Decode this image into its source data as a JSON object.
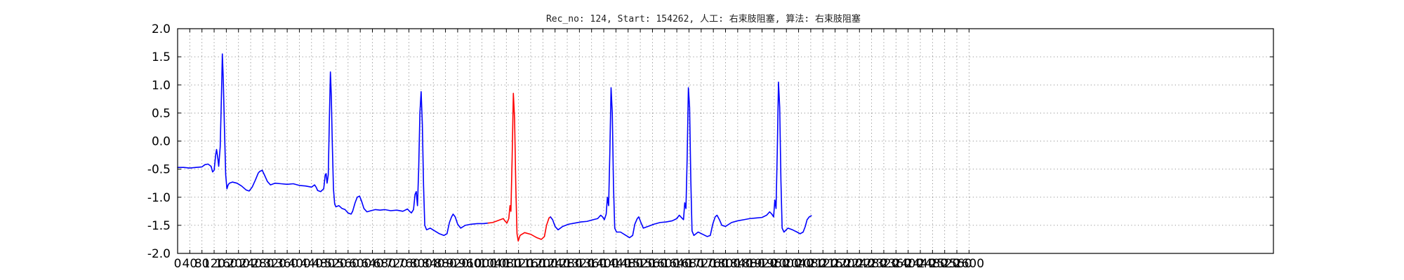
{
  "chart_data": {
    "type": "line",
    "title": "Rec_no: 124, Start: 154262, 人工: 右束肢阻塞, 算法: 右束肢阻塞",
    "xlabel": "",
    "ylabel": "",
    "xlim": [
      0,
      3600
    ],
    "ylim": [
      -2.0,
      2.0
    ],
    "grid": true,
    "x_ticks": [
      0,
      40,
      80,
      120,
      160,
      200,
      240,
      280,
      320,
      360,
      400,
      440,
      480,
      520,
      560,
      600,
      640,
      680,
      720,
      760,
      800,
      840,
      880,
      920,
      960,
      1000,
      1040,
      1080,
      1120,
      1160,
      1200,
      1240,
      1280,
      1320,
      1360,
      1400,
      1440,
      1480,
      1520,
      1560,
      1600,
      1640,
      1680,
      1720,
      1760,
      1800,
      1840,
      1880,
      1920,
      1960,
      2000,
      2040,
      2080,
      2120,
      2160,
      2200,
      2240,
      2280,
      2320,
      2360,
      2400,
      2440,
      2480,
      2520,
      2560,
      2600
    ],
    "y_ticks": [
      "-2.0",
      "-1.5",
      "-1.0",
      "-0.5",
      "0.0",
      "0.5",
      "1.0",
      "1.5",
      "2.0"
    ],
    "series": [
      {
        "color": "#0000ff",
        "points": [
          [
            0,
            -0.47
          ],
          [
            20,
            -0.47
          ],
          [
            40,
            -0.48
          ],
          [
            60,
            -0.47
          ],
          [
            80,
            -0.46
          ],
          [
            90,
            -0.42
          ],
          [
            100,
            -0.41
          ],
          [
            110,
            -0.45
          ],
          [
            115,
            -0.55
          ],
          [
            120,
            -0.52
          ],
          [
            125,
            -0.25
          ],
          [
            128,
            -0.15
          ],
          [
            132,
            -0.3
          ],
          [
            135,
            -0.45
          ],
          [
            140,
            -0.1
          ],
          [
            144,
            0.8
          ],
          [
            147,
            1.55
          ],
          [
            150,
            1.1
          ],
          [
            154,
            0.2
          ],
          [
            158,
            -0.6
          ],
          [
            162,
            -0.85
          ],
          [
            166,
            -0.78
          ],
          [
            170,
            -0.75
          ],
          [
            180,
            -0.73
          ],
          [
            195,
            -0.75
          ],
          [
            210,
            -0.8
          ],
          [
            225,
            -0.87
          ],
          [
            235,
            -0.89
          ],
          [
            245,
            -0.82
          ],
          [
            255,
            -0.7
          ],
          [
            265,
            -0.57
          ],
          [
            270,
            -0.54
          ],
          [
            278,
            -0.52
          ],
          [
            285,
            -0.6
          ],
          [
            295,
            -0.72
          ],
          [
            305,
            -0.78
          ],
          [
            320,
            -0.75
          ],
          [
            340,
            -0.76
          ],
          [
            360,
            -0.77
          ],
          [
            380,
            -0.76
          ],
          [
            400,
            -0.79
          ],
          [
            420,
            -0.8
          ],
          [
            440,
            -0.82
          ],
          [
            450,
            -0.78
          ],
          [
            455,
            -0.82
          ],
          [
            460,
            -0.88
          ],
          [
            470,
            -0.9
          ],
          [
            480,
            -0.85
          ],
          [
            485,
            -0.6
          ],
          [
            488,
            -0.58
          ],
          [
            491,
            -0.75
          ],
          [
            495,
            -0.6
          ],
          [
            499,
            0.5
          ],
          [
            502,
            1.23
          ],
          [
            505,
            0.8
          ],
          [
            508,
            0.0
          ],
          [
            512,
            -0.85
          ],
          [
            516,
            -1.12
          ],
          [
            520,
            -1.17
          ],
          [
            530,
            -1.15
          ],
          [
            540,
            -1.2
          ],
          [
            550,
            -1.22
          ],
          [
            560,
            -1.28
          ],
          [
            570,
            -1.3
          ],
          [
            575,
            -1.25
          ],
          [
            583,
            -1.1
          ],
          [
            590,
            -1.0
          ],
          [
            598,
            -0.98
          ],
          [
            605,
            -1.08
          ],
          [
            612,
            -1.2
          ],
          [
            622,
            -1.26
          ],
          [
            635,
            -1.24
          ],
          [
            650,
            -1.22
          ],
          [
            665,
            -1.23
          ],
          [
            680,
            -1.22
          ],
          [
            700,
            -1.24
          ],
          [
            720,
            -1.23
          ],
          [
            740,
            -1.25
          ],
          [
            755,
            -1.21
          ],
          [
            762,
            -1.25
          ],
          [
            768,
            -1.28
          ],
          [
            775,
            -1.22
          ],
          [
            780,
            -0.95
          ],
          [
            784,
            -0.9
          ],
          [
            788,
            -1.15
          ],
          [
            792,
            -0.5
          ],
          [
            796,
            0.5
          ],
          [
            800,
            0.88
          ],
          [
            804,
            0.3
          ],
          [
            808,
            -0.8
          ],
          [
            812,
            -1.5
          ],
          [
            818,
            -1.58
          ],
          [
            830,
            -1.55
          ],
          [
            845,
            -1.6
          ],
          [
            860,
            -1.65
          ],
          [
            875,
            -1.68
          ],
          [
            885,
            -1.65
          ],
          [
            893,
            -1.45
          ],
          [
            900,
            -1.35
          ],
          [
            905,
            -1.3
          ],
          [
            912,
            -1.35
          ],
          [
            920,
            -1.48
          ],
          [
            930,
            -1.55
          ],
          [
            945,
            -1.5
          ],
          [
            965,
            -1.48
          ],
          [
            985,
            -1.47
          ],
          [
            1005,
            -1.47
          ],
          [
            1020,
            -1.46
          ]
        ]
      },
      {
        "color": "#ff0000",
        "points": [
          [
            1020,
            -1.46
          ],
          [
            1035,
            -1.45
          ],
          [
            1050,
            -1.42
          ],
          [
            1060,
            -1.4
          ],
          [
            1070,
            -1.38
          ],
          [
            1075,
            -1.42
          ],
          [
            1082,
            -1.46
          ],
          [
            1088,
            -1.38
          ],
          [
            1092,
            -1.15
          ],
          [
            1095,
            -1.25
          ],
          [
            1099,
            -0.3
          ],
          [
            1103,
            0.85
          ],
          [
            1107,
            0.4
          ],
          [
            1111,
            -0.8
          ],
          [
            1115,
            -1.65
          ],
          [
            1119,
            -1.78
          ],
          [
            1125,
            -1.68
          ],
          [
            1140,
            -1.63
          ],
          [
            1160,
            -1.66
          ],
          [
            1180,
            -1.72
          ],
          [
            1195,
            -1.75
          ],
          [
            1205,
            -1.7
          ],
          [
            1212,
            -1.5
          ],
          [
            1220,
            -1.37
          ],
          [
            1225,
            -1.35
          ]
        ]
      },
      {
        "color": "#0000ff",
        "points": [
          [
            1225,
            -1.35
          ],
          [
            1232,
            -1.4
          ],
          [
            1240,
            -1.52
          ],
          [
            1250,
            -1.58
          ],
          [
            1265,
            -1.52
          ],
          [
            1285,
            -1.48
          ],
          [
            1305,
            -1.46
          ],
          [
            1325,
            -1.44
          ],
          [
            1345,
            -1.43
          ],
          [
            1365,
            -1.4
          ],
          [
            1380,
            -1.38
          ],
          [
            1390,
            -1.32
          ],
          [
            1396,
            -1.35
          ],
          [
            1402,
            -1.4
          ],
          [
            1408,
            -1.3
          ],
          [
            1412,
            -1.0
          ],
          [
            1416,
            -1.15
          ],
          [
            1420,
            -0.2
          ],
          [
            1424,
            0.95
          ],
          [
            1428,
            0.5
          ],
          [
            1432,
            -0.8
          ],
          [
            1436,
            -1.55
          ],
          [
            1442,
            -1.62
          ],
          [
            1455,
            -1.62
          ],
          [
            1470,
            -1.67
          ],
          [
            1485,
            -1.72
          ],
          [
            1495,
            -1.68
          ],
          [
            1502,
            -1.48
          ],
          [
            1510,
            -1.38
          ],
          [
            1515,
            -1.35
          ],
          [
            1522,
            -1.45
          ],
          [
            1530,
            -1.55
          ],
          [
            1545,
            -1.52
          ],
          [
            1565,
            -1.48
          ],
          [
            1585,
            -1.45
          ],
          [
            1605,
            -1.44
          ],
          [
            1625,
            -1.42
          ],
          [
            1640,
            -1.38
          ],
          [
            1648,
            -1.32
          ],
          [
            1655,
            -1.36
          ],
          [
            1662,
            -1.4
          ],
          [
            1666,
            -1.1
          ],
          [
            1670,
            -1.2
          ],
          [
            1674,
            -0.3
          ],
          [
            1678,
            0.95
          ],
          [
            1682,
            0.6
          ],
          [
            1686,
            -0.7
          ],
          [
            1690,
            -1.6
          ],
          [
            1696,
            -1.68
          ],
          [
            1710,
            -1.62
          ],
          [
            1725,
            -1.66
          ],
          [
            1740,
            -1.7
          ],
          [
            1750,
            -1.68
          ],
          [
            1758,
            -1.48
          ],
          [
            1766,
            -1.35
          ],
          [
            1772,
            -1.32
          ],
          [
            1780,
            -1.4
          ],
          [
            1788,
            -1.5
          ],
          [
            1800,
            -1.52
          ],
          [
            1820,
            -1.45
          ],
          [
            1840,
            -1.42
          ],
          [
            1860,
            -1.4
          ],
          [
            1880,
            -1.38
          ],
          [
            1900,
            -1.37
          ],
          [
            1920,
            -1.36
          ],
          [
            1935,
            -1.32
          ],
          [
            1945,
            -1.26
          ],
          [
            1952,
            -1.3
          ],
          [
            1958,
            -1.35
          ],
          [
            1962,
            -1.05
          ],
          [
            1966,
            -1.2
          ],
          [
            1970,
            -0.2
          ],
          [
            1974,
            1.05
          ],
          [
            1978,
            0.6
          ],
          [
            1982,
            -0.7
          ],
          [
            1986,
            -1.55
          ],
          [
            1992,
            -1.62
          ],
          [
            2005,
            -1.55
          ],
          [
            2020,
            -1.58
          ],
          [
            2035,
            -1.62
          ],
          [
            2045,
            -1.65
          ],
          [
            2055,
            -1.62
          ],
          [
            2062,
            -1.52
          ],
          [
            2068,
            -1.4
          ],
          [
            2075,
            -1.35
          ],
          [
            2082,
            -1.33
          ]
        ]
      }
    ]
  }
}
